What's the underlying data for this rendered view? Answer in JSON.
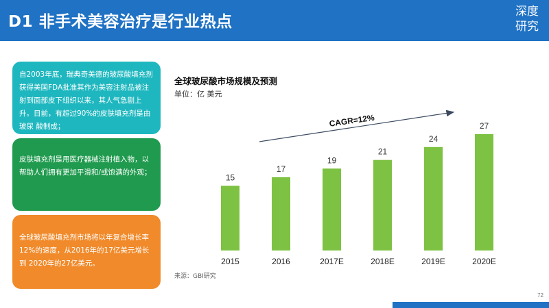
{
  "header": {
    "title": "D1 非手术美容治疗是行业热点",
    "logo_line1": "深度",
    "logo_line2": "研究"
  },
  "cards": [
    {
      "text": "自2003年底，瑞典奇美德的玻尿酸填充剂获得美国FDA批准其作为美容注射品被注射到面部皮下组织以来，其人气急剧上升。目前，有超过90%的皮肤填充剂是由玻尿 酸制成；",
      "color": "#1fb7bf"
    },
    {
      "text": "皮肤填充剂是用医疗器械注射植入物，以帮助人们拥有更加平滑和/或饱满的外观；",
      "color": "#1f9a4e"
    },
    {
      "text": "全球玻尿酸填充剂市场将以年复合增长率12%的速度，从2016年的17亿美元增长到 2020年的27亿美元。",
      "color": "#f08a2a"
    }
  ],
  "chart_data": {
    "type": "bar",
    "title": "全球玻尿酸市场规模及预测",
    "unit": "单位：亿 美元",
    "categories": [
      "2015",
      "2016",
      "2017E",
      "2018E",
      "2019E",
      "2020E"
    ],
    "values": [
      15,
      17,
      19,
      21,
      24,
      27
    ],
    "bar_color": "#7dc242",
    "annotation": "CAGR=12%",
    "ylim": [
      0,
      30
    ],
    "grid": false
  },
  "source": "来源：GBI研究",
  "page_number": "72"
}
